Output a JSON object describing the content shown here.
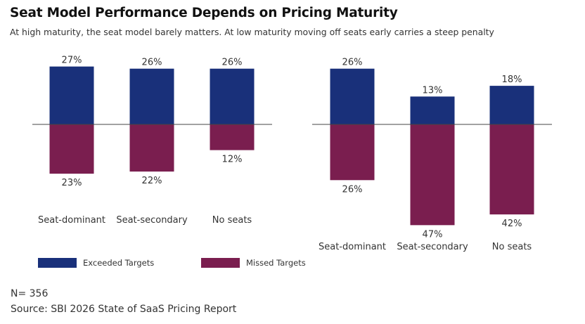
{
  "title": "Seat Model Performance Depends on Pricing Maturity",
  "subtitle": "At high maturity, the seat model barely matters. At low maturity moving off seats early carries a steep penalty",
  "legend": {
    "exceeded_label": "Exceeded Targets",
    "missed_label": "Missed Targets"
  },
  "footnote": {
    "n": "N= 356",
    "source": "Source: SBI 2026 State of SaaS Pricing Report"
  },
  "colors": {
    "exceeded": "#19307a",
    "missed": "#7a1e4f",
    "axis": "#444444"
  },
  "chart_data": [
    {
      "type": "bar",
      "categories": [
        "Seat-dominant",
        "Seat-secondary",
        "No seats"
      ],
      "series": [
        {
          "name": "Exceeded Targets",
          "values": [
            27,
            26,
            26
          ]
        },
        {
          "name": "Missed Targets",
          "values": [
            23,
            22,
            12
          ]
        }
      ]
    },
    {
      "type": "bar",
      "categories": [
        "Seat-dominant",
        "Seat-secondary",
        "No seats"
      ],
      "series": [
        {
          "name": "Exceeded Targets",
          "values": [
            26,
            13,
            18
          ]
        },
        {
          "name": "Missed Targets",
          "values": [
            26,
            47,
            42
          ]
        }
      ]
    }
  ]
}
